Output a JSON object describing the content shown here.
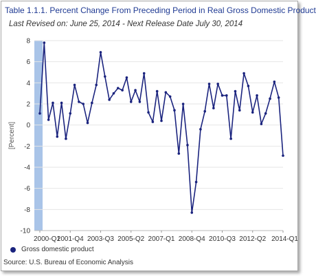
{
  "title": "Table 1.1.1. Percent Change From Preceding Period in Real Gross Domestic Product",
  "subtitle": "Last Revised on: June 25, 2014 - Next Release Date July 30, 2014",
  "source": "Source: U.S. Bureau of Economic Analysis",
  "colors": {
    "series": "#1a237e",
    "title": "#1f3a93",
    "highlight": "#a9c4e8",
    "grid": "#e6e6e6"
  },
  "chart_data": {
    "type": "line",
    "ylabel": "[Percent]",
    "xlabel": "",
    "ylim": [
      -10,
      8
    ],
    "yticks": [
      8,
      6,
      4,
      2,
      0,
      -2,
      -4,
      -6,
      -8,
      -10
    ],
    "xtick_labels": [
      "2000-Q1",
      "2001-Q4",
      "2003-Q3",
      "2005-Q2",
      "2007-Q1",
      "2008-Q4",
      "2010-Q3",
      "2012-Q2",
      "2014-Q1"
    ],
    "highlight_period": "2000-Q1",
    "legend_position": "bottom-left",
    "grid": "horizontal",
    "series": [
      {
        "name": "Gross domestic product",
        "x": [
          "2000-Q1",
          "2000-Q2",
          "2000-Q3",
          "2000-Q4",
          "2001-Q1",
          "2001-Q2",
          "2001-Q3",
          "2001-Q4",
          "2002-Q1",
          "2002-Q2",
          "2002-Q3",
          "2002-Q4",
          "2003-Q1",
          "2003-Q2",
          "2003-Q3",
          "2003-Q4",
          "2004-Q1",
          "2004-Q2",
          "2004-Q3",
          "2004-Q4",
          "2005-Q1",
          "2005-Q2",
          "2005-Q3",
          "2005-Q4",
          "2006-Q1",
          "2006-Q2",
          "2006-Q3",
          "2006-Q4",
          "2007-Q1",
          "2007-Q2",
          "2007-Q3",
          "2007-Q4",
          "2008-Q1",
          "2008-Q2",
          "2008-Q3",
          "2008-Q4",
          "2009-Q1",
          "2009-Q2",
          "2009-Q3",
          "2009-Q4",
          "2010-Q1",
          "2010-Q2",
          "2010-Q3",
          "2010-Q4",
          "2011-Q1",
          "2011-Q2",
          "2011-Q3",
          "2011-Q4",
          "2012-Q1",
          "2012-Q2",
          "2012-Q3",
          "2012-Q4",
          "2013-Q1",
          "2013-Q2",
          "2013-Q3",
          "2013-Q4",
          "2014-Q1"
        ],
        "values": [
          1.1,
          7.8,
          0.5,
          2.1,
          -1.1,
          2.1,
          -1.3,
          1.1,
          3.8,
          2.2,
          2.0,
          0.2,
          2.1,
          3.8,
          6.9,
          4.6,
          2.4,
          3.0,
          3.5,
          3.3,
          4.5,
          2.2,
          3.3,
          2.2,
          4.9,
          1.2,
          0.3,
          3.2,
          0.4,
          3.1,
          2.7,
          1.4,
          -2.7,
          2.0,
          -1.9,
          -8.3,
          -5.4,
          -0.4,
          1.3,
          3.9,
          1.6,
          3.9,
          2.8,
          2.8,
          -1.3,
          3.2,
          1.4,
          4.9,
          3.7,
          1.2,
          2.8,
          0.1,
          1.1,
          2.5,
          4.1,
          2.6,
          -2.9
        ]
      }
    ]
  }
}
